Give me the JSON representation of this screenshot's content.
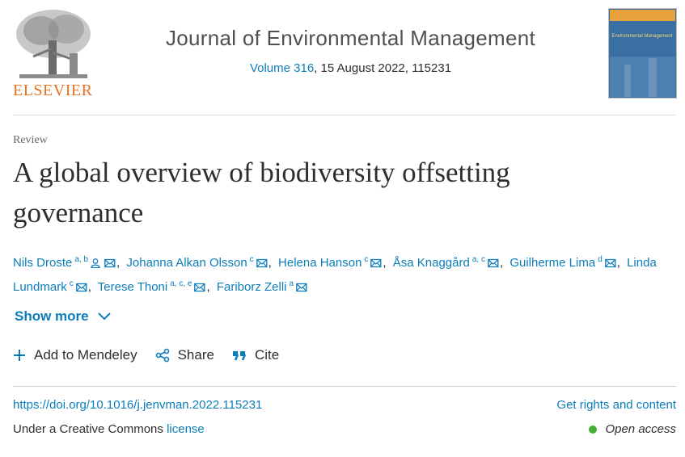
{
  "header": {
    "publisher": "ELSEVIER",
    "journal": "Journal of Environmental Management",
    "volume": "Volume 316",
    "issue_info": ", 15 August 2022, 115231",
    "cover_title": "Environmental Management"
  },
  "article": {
    "type": "Review",
    "title": "A global overview of biodiversity offsetting governance",
    "authors": [
      {
        "name": "Nils Droste",
        "affiliations": "a, b"
      },
      {
        "name": "Johanna Alkan Olsson",
        "affiliations": "c"
      },
      {
        "name": "Helena Hanson",
        "affiliations": "c"
      },
      {
        "name": "Åsa Knaggård",
        "affiliations": "a, c"
      },
      {
        "name": "Guilherme Lima",
        "affiliations": "d"
      },
      {
        "name": "Linda Lundmark",
        "affiliations": "c"
      },
      {
        "name": "Terese Thoni",
        "affiliations": "a, c, e"
      },
      {
        "name": "Fariborz Zelli",
        "affiliations": "a"
      }
    ],
    "show_more": "Show more",
    "actions": [
      "Add to Mendeley",
      "Share",
      "Cite"
    ],
    "doi": "https://doi.org/10.1016/j.jenvman.2022.115231",
    "rights": "Get rights and content",
    "license_prefix": "Under a Creative Commons",
    "license_link": "license",
    "access": "Open access"
  }
}
